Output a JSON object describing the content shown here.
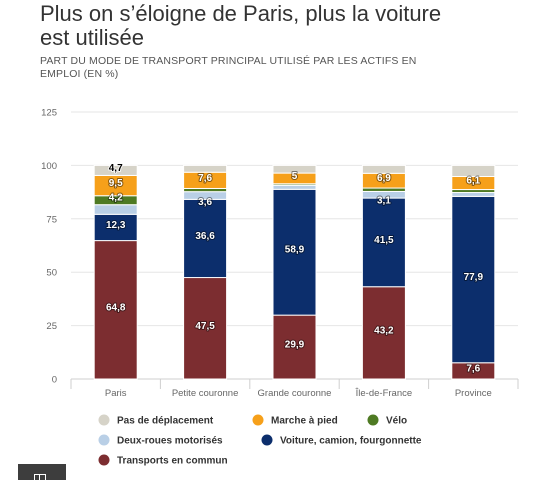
{
  "chart_data": {
    "type": "bar",
    "stacked": true,
    "title": "Plus on s’éloigne de Paris, plus la voiture est utilisée",
    "subtitle": "PART DU MODE DE TRANSPORT PRINCIPAL UTILISÉ PAR LES ACTIFS EN EMPLOI (EN %)",
    "categories": [
      "Paris",
      "Petite couronne",
      "Grande couronne",
      "Île-de-France",
      "Province"
    ],
    "ylim": [
      0,
      125
    ],
    "yticks": [
      0,
      25,
      50,
      75,
      100,
      125
    ],
    "grid": true,
    "legend": "bottom",
    "series": [
      {
        "name": "Pas de déplacement",
        "color": "#d6d3c8",
        "label_color": "#000000",
        "values": [
          4.7,
          3.2,
          3.6,
          3.7,
          5.2
        ],
        "labels": [
          "4,7",
          null,
          null,
          null,
          null
        ]
      },
      {
        "name": "Marche à pied",
        "color": "#f6a01a",
        "label_color": "#ffffff",
        "values": [
          9.5,
          7.6,
          5.0,
          6.9,
          6.1
        ],
        "labels": [
          "9,5",
          "7,6",
          "5",
          "6,9",
          "6,1"
        ]
      },
      {
        "name": "Vélo",
        "color": "#4e7a23",
        "label_color": "#ffffff",
        "values": [
          4.2,
          1.5,
          0.7,
          1.6,
          1.4
        ],
        "labels": [
          "4,2",
          null,
          null,
          null,
          null
        ]
      },
      {
        "name": "Deux-roues motorisés",
        "color": "#b9cfe6",
        "label_color": "#ffffff",
        "values": [
          4.5,
          3.6,
          1.9,
          3.1,
          1.8
        ],
        "labels": [
          null,
          "3,6",
          null,
          "3,1",
          null
        ]
      },
      {
        "name": "Voiture, camion, fourgonnette",
        "color": "#0c2e6c",
        "label_color": "#ffffff",
        "values": [
          12.3,
          36.6,
          58.9,
          41.5,
          77.9
        ],
        "labels": [
          "12,3",
          "36,6",
          "58,9",
          "41,5",
          "77,9"
        ]
      },
      {
        "name": "Transports en commun",
        "color": "#7c2d30",
        "label_color": "#ffffff",
        "values": [
          64.8,
          47.5,
          29.9,
          43.2,
          7.6
        ],
        "labels": [
          "64,8",
          "47,5",
          "29,9",
          "43,2",
          "7,6"
        ]
      }
    ]
  },
  "footer": {
    "logo_icon": "logo-icon"
  }
}
